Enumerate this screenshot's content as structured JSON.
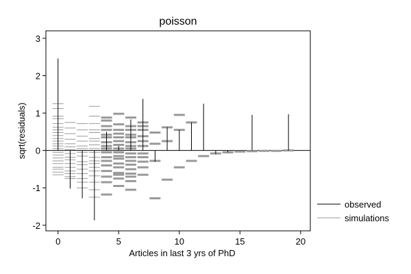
{
  "chart_data": {
    "type": "residual-spike-plot",
    "title": "poisson",
    "xlabel": "Articles in last 3 yrs of PhD",
    "ylabel": "sqrt(residuals)",
    "xlim": [
      -1,
      20.8
    ],
    "ylim": [
      -2.15,
      3.2
    ],
    "xticks": [
      0,
      5,
      10,
      15,
      20
    ],
    "yticks": [
      -2,
      -1,
      0,
      1,
      2,
      3
    ],
    "grid": false,
    "legend_position": "right",
    "colors": {
      "observed": "#000000",
      "simulations": "#999999",
      "axis": "#000000"
    },
    "series": [
      {
        "name": "observed",
        "type": "spike",
        "x": [
          0,
          1,
          2,
          3,
          4,
          5,
          6,
          7,
          8,
          9,
          10,
          11,
          12,
          13,
          14,
          16,
          19
        ],
        "y": [
          2.46,
          -1.02,
          -1.28,
          -1.87,
          0.5,
          0.12,
          0.83,
          1.38,
          -0.3,
          0.62,
          0.55,
          0.75,
          1.25,
          -0.1,
          -0.05,
          0.95,
          0.97
        ]
      },
      {
        "name": "simulations",
        "type": "ticks",
        "points": [
          [
            0,
            [
              1.25,
              1.12,
              0.92,
              0.85,
              0.72,
              0.62,
              0.55,
              0.48,
              0.4,
              0.32,
              0.25,
              0.18,
              0.12,
              0.05,
              -0.05,
              -0.12,
              -0.2,
              -0.28,
              -0.35,
              -0.45,
              -0.5,
              -0.58,
              -0.65
            ]
          ],
          [
            1,
            [
              0.75,
              0.6,
              0.45,
              0.3,
              0.18,
              0.1,
              0.02,
              -0.08,
              -0.18,
              -0.25,
              -0.35,
              -0.45,
              -0.55,
              -0.62,
              -0.7,
              -0.75
            ]
          ],
          [
            2,
            [
              0.72,
              0.55,
              0.38,
              0.25,
              0.12,
              0.05,
              -0.05,
              -0.15,
              -0.3,
              -0.38,
              -0.5,
              -0.62,
              -0.75,
              -0.85,
              -1.0
            ]
          ],
          [
            3,
            [
              1.18,
              0.92,
              0.72,
              0.55,
              0.48,
              0.32,
              0.25,
              0.15,
              0.05,
              -0.05,
              -0.18,
              -0.28,
              -0.35,
              -0.45,
              -0.55,
              -0.68,
              -0.85,
              -1.05,
              -1.25
            ]
          ],
          [
            4,
            [
              0.88,
              0.8,
              0.65,
              0.55,
              0.42,
              0.35,
              0.22,
              0.12,
              0.05,
              -0.05,
              -0.18,
              -0.28,
              -0.4,
              -0.55,
              -0.7,
              -0.85,
              -1.18
            ]
          ],
          [
            5,
            [
              0.98,
              0.7,
              0.55,
              0.45,
              0.35,
              0.25,
              0.15,
              0.05,
              -0.05,
              -0.15,
              -0.22,
              -0.35,
              -0.45,
              -0.6,
              -0.65,
              -0.75,
              -0.95
            ]
          ],
          [
            6,
            [
              0.88,
              0.65,
              0.55,
              0.42,
              0.35,
              0.22,
              0.12,
              0.05,
              -0.08,
              -0.18,
              -0.28,
              -0.38,
              -0.5,
              -0.62,
              -0.7,
              -0.82,
              -1.05
            ]
          ],
          [
            7,
            [
              0.75,
              0.65,
              0.55,
              0.38,
              0.25,
              0.12,
              -0.08,
              -0.18,
              -0.3,
              -0.45,
              -0.65
            ]
          ],
          [
            8,
            [
              0.48,
              0.18,
              -0.28,
              -1.28
            ]
          ],
          [
            9,
            [
              0.62,
              0.25,
              -0.78
            ]
          ],
          [
            10,
            [
              0.95,
              0.55,
              -0.45
            ]
          ],
          [
            11,
            [
              0.75,
              -0.28
            ]
          ],
          [
            12,
            [
              -0.15
            ]
          ],
          [
            13,
            [
              -0.08
            ]
          ],
          [
            14,
            [
              -0.05
            ]
          ],
          [
            15,
            [
              -0.03
            ]
          ],
          [
            16,
            [
              -0.02
            ]
          ],
          [
            17,
            [
              -0.01
            ]
          ],
          [
            18,
            [
              -0.01
            ]
          ],
          [
            19,
            [
              0.0
            ]
          ]
        ]
      }
    ]
  }
}
